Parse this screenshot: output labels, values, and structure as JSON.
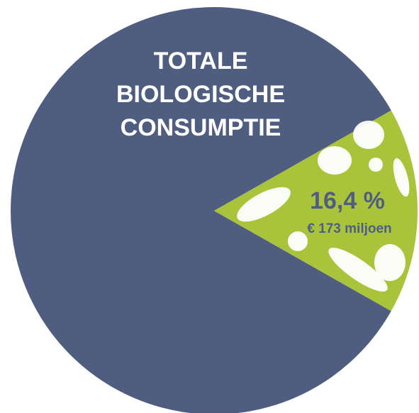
{
  "chart_data": {
    "type": "pie",
    "title": "TOTALE BIOLOGISCHE CONSUMPTIE",
    "categories": [
      null,
      null
    ],
    "values": [
      83.6,
      16.4
    ],
    "value_labels": [
      null,
      "16,4 %"
    ],
    "annotation": "€ 173 miljoen",
    "colors": [
      "#4f5e80",
      "#a9c43b"
    ]
  }
}
